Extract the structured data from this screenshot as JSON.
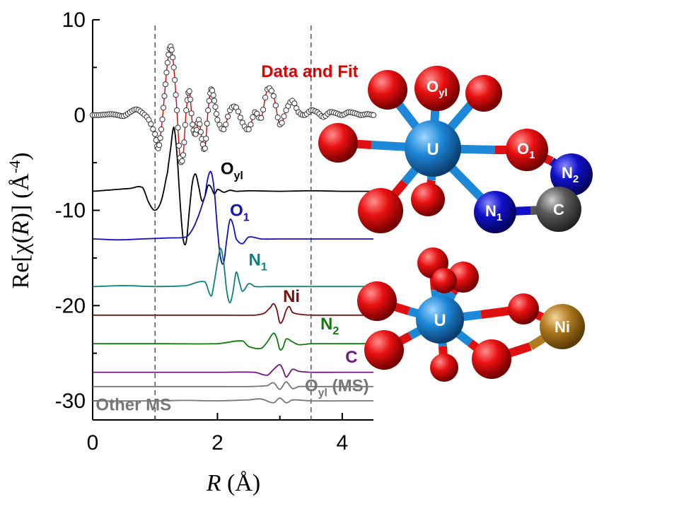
{
  "chart_data": {
    "type": "line",
    "xlabel": {
      "symbol": "R",
      "unit": " (Å)"
    },
    "ylabel": {
      "prefix": "Re[χ(",
      "symbol": "R",
      "suffix": ")] (Å",
      "exp": "-4",
      "close": ")"
    },
    "xlim": [
      0,
      4.5
    ],
    "ylim": [
      -32,
      10
    ],
    "xticks": [
      0,
      2,
      4
    ],
    "yticks": [
      10,
      0,
      -10,
      -20,
      -30
    ],
    "fit_window": [
      1.0,
      3.5
    ],
    "grid": false,
    "legend": "none",
    "series": [
      {
        "key": "data",
        "name": "Data and Fit",
        "name_main": "Data and Fit",
        "name_sub": "",
        "name_tail": "",
        "color": "#e00000",
        "offset": 0,
        "label_x": 2.7,
        "label_y": 4.0,
        "x": [
          0.0,
          0.1,
          0.2,
          0.3,
          0.4,
          0.5,
          0.6,
          0.7,
          0.8,
          0.9,
          1.0,
          1.05,
          1.1,
          1.15,
          1.2,
          1.25,
          1.3,
          1.35,
          1.4,
          1.45,
          1.5,
          1.55,
          1.6,
          1.65,
          1.7,
          1.75,
          1.8,
          1.85,
          1.9,
          1.95,
          2.0,
          2.1,
          2.2,
          2.3,
          2.4,
          2.5,
          2.6,
          2.7,
          2.8,
          2.9,
          3.0,
          3.1,
          3.2,
          3.3,
          3.4,
          3.5,
          3.6,
          3.7,
          3.8,
          3.9,
          4.0,
          4.1,
          4.2,
          4.3,
          4.4,
          4.5
        ],
        "y": [
          0.0,
          0.0,
          0.05,
          0.1,
          0.0,
          -0.1,
          0.3,
          0.6,
          0.2,
          -0.5,
          -2.0,
          -3.5,
          -1.5,
          2.0,
          5.5,
          7.2,
          5.0,
          0.5,
          -4.5,
          -4.2,
          0.5,
          2.5,
          -1.0,
          -2.0,
          -0.5,
          -2.5,
          -3.5,
          0.5,
          2.7,
          1.5,
          -0.5,
          -1.5,
          0.5,
          0.8,
          -0.8,
          -1.5,
          0.3,
          -0.3,
          2.7,
          2.0,
          -1.0,
          0.5,
          1.5,
          0.3,
          0.0,
          0.5,
          0.3,
          -0.2,
          0.3,
          0.2,
          0.0,
          0.3,
          0.2,
          0.0,
          0.1,
          0.0
        ]
      },
      {
        "key": "oyl",
        "name": "Oyl",
        "name_main": "O",
        "name_sub": "yl",
        "name_tail": "",
        "color": "#000000",
        "offset": -8,
        "label_x": 2.05,
        "label_y": -6.2,
        "x": [
          0.0,
          0.2,
          0.4,
          0.6,
          0.8,
          0.9,
          1.0,
          1.1,
          1.2,
          1.25,
          1.3,
          1.35,
          1.4,
          1.45,
          1.5,
          1.55,
          1.6,
          1.65,
          1.7,
          1.75,
          1.8,
          1.85,
          1.9,
          1.95,
          2.0,
          2.1,
          2.2,
          2.3,
          2.5,
          3.0,
          3.5,
          4.0,
          4.5
        ],
        "y": [
          0.0,
          0.1,
          0.2,
          0.3,
          0.4,
          -1.2,
          -2.0,
          -1.0,
          2.0,
          4.5,
          6.7,
          4.0,
          -1.0,
          -5.0,
          -5.3,
          -2.0,
          1.0,
          1.8,
          0.5,
          -1.0,
          -0.5,
          0.6,
          0.4,
          -0.3,
          0.2,
          -0.1,
          0.1,
          0.0,
          0.05,
          0.0,
          0.05,
          0.0,
          0.0
        ]
      },
      {
        "key": "o1",
        "name": "O1",
        "name_main": "O",
        "name_sub": "1",
        "name_tail": "",
        "color": "#1010c0",
        "offset": -13,
        "label_x": 2.2,
        "label_y": -10.6,
        "x": [
          0.0,
          0.4,
          0.8,
          1.2,
          1.5,
          1.6,
          1.7,
          1.8,
          1.85,
          1.9,
          1.95,
          2.0,
          2.05,
          2.1,
          2.15,
          2.2,
          2.25,
          2.3,
          2.4,
          2.5,
          2.7,
          3.0,
          3.5,
          4.0,
          4.5
        ],
        "y": [
          0.0,
          -0.1,
          0.0,
          0.1,
          0.2,
          1.0,
          2.5,
          4.5,
          6.5,
          7.0,
          5.0,
          1.0,
          -2.0,
          -2.5,
          0.0,
          2.0,
          1.5,
          0.0,
          -0.5,
          0.2,
          0.0,
          0.0,
          0.0,
          0.0,
          0.0
        ]
      },
      {
        "key": "n1",
        "name": "N1",
        "name_main": "N",
        "name_sub": "1",
        "name_tail": "",
        "color": "#0f7f7f",
        "offset": -18,
        "label_x": 2.5,
        "label_y": -15.8,
        "x": [
          0.0,
          0.5,
          1.0,
          1.5,
          1.8,
          1.9,
          1.95,
          2.0,
          2.05,
          2.1,
          2.15,
          2.2,
          2.25,
          2.3,
          2.35,
          2.4,
          2.5,
          2.6,
          2.8,
          3.0,
          3.5,
          4.0,
          4.5
        ],
        "y": [
          0.0,
          0.1,
          0.0,
          0.1,
          0.5,
          -1.0,
          0.5,
          2.5,
          4.0,
          2.5,
          -0.5,
          -1.7,
          -0.5,
          1.5,
          0.5,
          -0.5,
          0.3,
          0.0,
          0.0,
          0.0,
          0.0,
          0.0,
          0.0
        ]
      },
      {
        "key": "ni",
        "name": "Ni",
        "name_main": "Ni",
        "name_sub": "",
        "name_tail": "",
        "color": "#7a1010",
        "offset": -21,
        "label_x": 3.05,
        "label_y": -19.6,
        "x": [
          0.0,
          1.0,
          2.0,
          2.6,
          2.75,
          2.85,
          2.9,
          2.95,
          3.0,
          3.05,
          3.1,
          3.15,
          3.2,
          3.3,
          3.5,
          4.0,
          4.5
        ],
        "y": [
          0.0,
          0.0,
          0.0,
          0.0,
          0.2,
          0.8,
          1.2,
          0.6,
          -0.8,
          -0.5,
          0.5,
          0.9,
          0.3,
          0.1,
          0.0,
          0.0,
          0.0
        ]
      },
      {
        "key": "n2",
        "name": "N2",
        "name_main": "N",
        "name_sub": "2",
        "name_tail": "",
        "color": "#107a10",
        "offset": -24,
        "label_x": 3.65,
        "label_y": -22.5,
        "x": [
          0.0,
          1.0,
          2.0,
          2.4,
          2.5,
          2.7,
          2.8,
          2.9,
          2.95,
          3.0,
          3.05,
          3.1,
          3.2,
          3.3,
          3.5,
          4.0,
          4.5
        ],
        "y": [
          0.0,
          0.0,
          0.0,
          0.3,
          -0.3,
          -0.5,
          0.2,
          1.1,
          0.6,
          -0.6,
          -0.4,
          0.5,
          0.2,
          -0.1,
          0.0,
          0.0,
          0.0
        ]
      },
      {
        "key": "c",
        "name": "C",
        "name_main": "C",
        "name_sub": "",
        "name_tail": "",
        "color": "#6a1a7a",
        "offset": -27,
        "label_x": 4.05,
        "label_y": -26.0,
        "x": [
          0.0,
          1.0,
          2.0,
          2.6,
          2.8,
          2.9,
          3.0,
          3.05,
          3.1,
          3.2,
          3.3,
          3.5,
          4.0,
          4.5
        ],
        "y": [
          0.0,
          0.0,
          0.0,
          0.0,
          -0.3,
          0.3,
          0.8,
          0.3,
          -0.5,
          0.3,
          0.1,
          0.0,
          0.0,
          0.0
        ]
      },
      {
        "key": "oylms",
        "name": "Oyl (MS)",
        "name_main": "O",
        "name_sub": "yl",
        "name_tail": " (MS)",
        "color": "#777777",
        "offset": -28.5,
        "label_x": 3.4,
        "label_y": -29.0,
        "x": [
          0.0,
          1.0,
          2.0,
          2.5,
          2.8,
          2.9,
          3.0,
          3.1,
          3.2,
          3.3,
          3.5,
          4.0,
          4.5
        ],
        "y": [
          0.0,
          0.0,
          0.0,
          0.0,
          0.1,
          0.4,
          -0.3,
          0.5,
          -0.2,
          0.0,
          0.0,
          0.0,
          0.0
        ]
      },
      {
        "key": "otherms",
        "name": "Other MS",
        "name_main": "Other MS",
        "name_sub": "",
        "name_tail": "",
        "color": "#777777",
        "offset": -30,
        "label_x": 0.05,
        "label_y": -31.0,
        "x": [
          0.0,
          1.0,
          1.5,
          2.0,
          2.5,
          2.7,
          2.9,
          3.0,
          3.1,
          3.2,
          3.5,
          4.0,
          4.5
        ],
        "y": [
          0.0,
          0.0,
          0.05,
          0.0,
          0.1,
          0.2,
          -0.2,
          0.3,
          -0.2,
          0.1,
          0.0,
          0.0,
          0.0
        ]
      }
    ]
  },
  "structures": [
    {
      "key": "top",
      "description_atoms": [
        {
          "key": "u",
          "label": "U",
          "color": "#1e88d8"
        },
        {
          "key": "oyl",
          "label_main": "O",
          "label_sub": "yl",
          "color": "#e01010"
        },
        {
          "key": "o1",
          "label_main": "O",
          "label_sub": "1",
          "color": "#e01010"
        },
        {
          "key": "n1",
          "label_main": "N",
          "label_sub": "1",
          "color": "#1010c8"
        },
        {
          "key": "n2",
          "label_main": "N",
          "label_sub": "2",
          "color": "#1010c8"
        },
        {
          "key": "c",
          "label": "C",
          "color": "#555555"
        }
      ]
    },
    {
      "key": "bottom",
      "description_atoms": [
        {
          "key": "u",
          "label": "U",
          "color": "#1e88d8"
        },
        {
          "key": "ni",
          "label": "Ni",
          "color": "#b07a20"
        }
      ]
    }
  ]
}
